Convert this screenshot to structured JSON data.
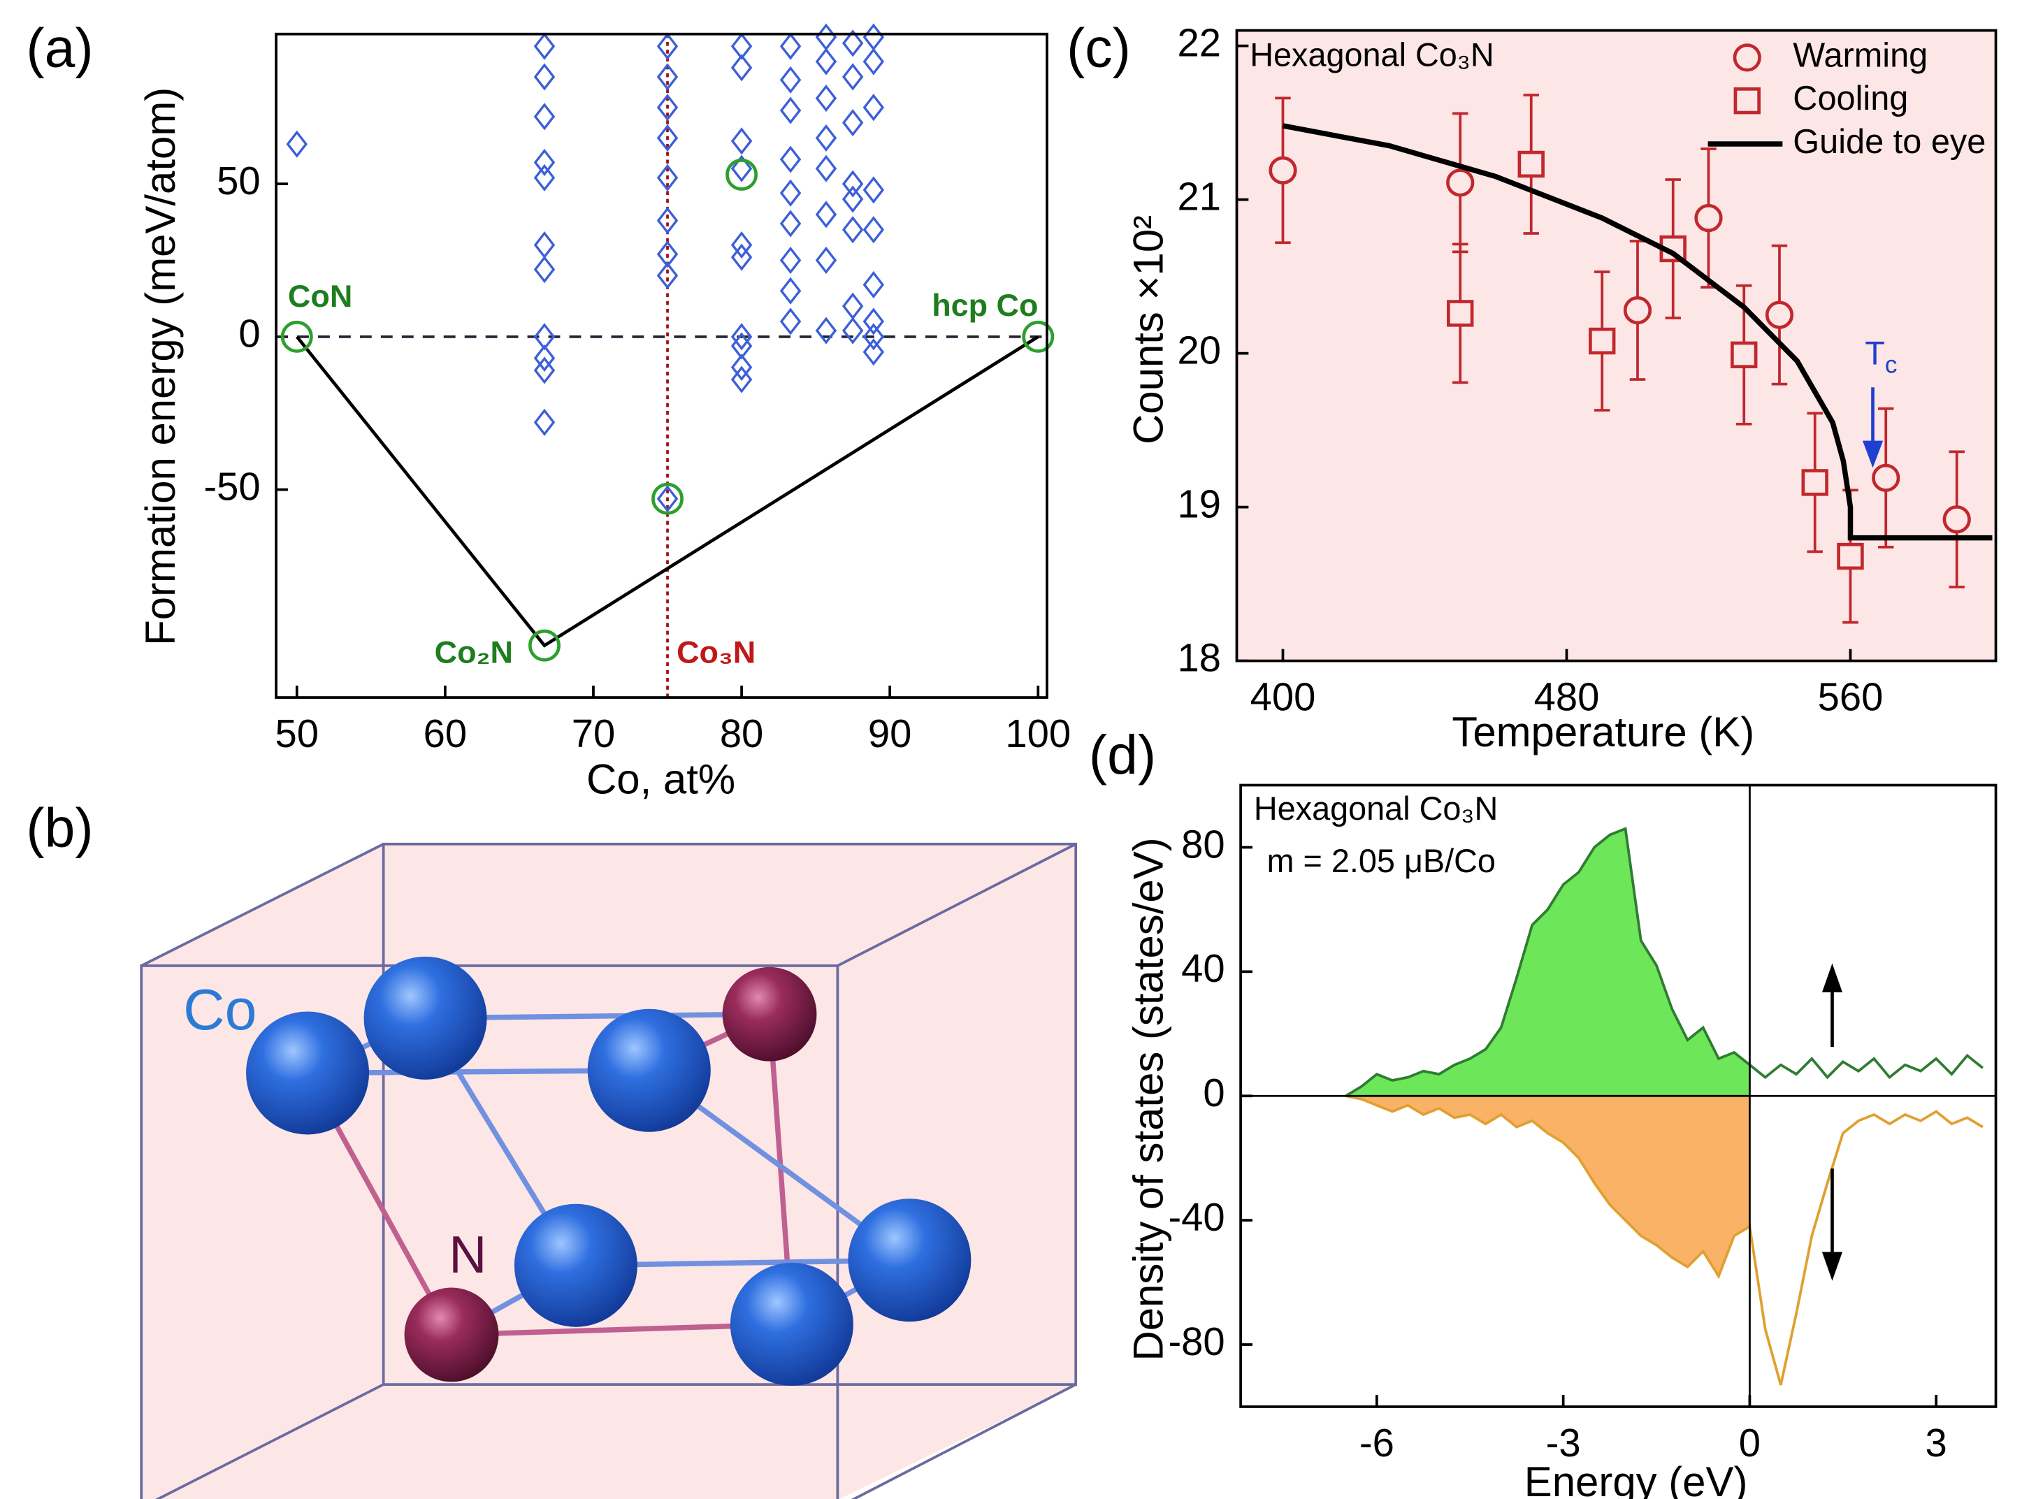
{
  "chart_data": [
    {
      "type": "scatter",
      "label": "(a)",
      "xlabel": "Co, at%",
      "ylabel": "Formation energy (meV/atom)",
      "background": "#ffffff",
      "xlim": [
        48.6,
        100.6
      ],
      "ylim": [
        -118,
        99
      ],
      "xticks": [
        50,
        60,
        70,
        80,
        90,
        100
      ],
      "yticks": [
        -50,
        0,
        50
      ],
      "hlines": [
        0
      ],
      "vlines": [
        75
      ],
      "hull": {
        "color": "#000000",
        "x": [
          50,
          66.7,
          100
        ],
        "y": [
          0,
          -101,
          0
        ]
      },
      "series": [
        {
          "marker": "diamond",
          "color": "#3c5fd8",
          "x": [
            50,
            66.7,
            66.7,
            66.7,
            66.7,
            66.7,
            66.7,
            66.7,
            66.7,
            66.7,
            66.7,
            66.7,
            75,
            75,
            75,
            75,
            75,
            75,
            75,
            75,
            75,
            80,
            80,
            80,
            80,
            80,
            80,
            80,
            80,
            80,
            80,
            83.3,
            83.3,
            83.3,
            83.3,
            83.3,
            83.3,
            83.3,
            83.3,
            83.3,
            85.7,
            85.7,
            85.7,
            85.7,
            85.7,
            85.7,
            85.7,
            85.7,
            87.5,
            87.5,
            87.5,
            87.5,
            87.5,
            87.5,
            87.5,
            87.5,
            88.9,
            88.9,
            88.9,
            88.9,
            88.9,
            88.9,
            88.9,
            88.9,
            88.9
          ],
          "y": [
            63,
            95,
            85,
            72,
            57,
            52,
            30,
            22,
            0,
            -7,
            -11,
            -28,
            95,
            85,
            75,
            65,
            52,
            38,
            27,
            20,
            -53,
            95,
            88,
            64,
            55,
            30,
            26,
            0,
            -3,
            -10,
            -14,
            95,
            84,
            74,
            58,
            47,
            37,
            25,
            15,
            5,
            98,
            90,
            78,
            65,
            55,
            40,
            25,
            2,
            96,
            85,
            70,
            50,
            45,
            35,
            10,
            2,
            98,
            90,
            75,
            48,
            35,
            17,
            5,
            0,
            -5
          ]
        },
        {
          "marker": "circle",
          "color": "#2ca02c",
          "x": [
            50,
            66.7,
            75,
            80,
            100
          ],
          "y": [
            0,
            -101,
            -53,
            53,
            0
          ]
        }
      ],
      "annotations": [
        {
          "text": "CoN",
          "color": "#1e7d1e"
        },
        {
          "text": "Co₂N",
          "color": "#1e7d1e"
        },
        {
          "text": "Co₃N",
          "color": "#c01818"
        },
        {
          "text": "hcp Co",
          "color": "#1e7d1e"
        }
      ]
    },
    {
      "type": "errorbar",
      "label": "(c)",
      "xlabel": "Temperature (K)",
      "ylabel": "Counts ×10²",
      "background": "#fde6e6",
      "xlim": [
        387,
        601
      ],
      "ylim": [
        18,
        22.1
      ],
      "xticks": [
        400,
        480,
        560
      ],
      "yticks": [
        18,
        19,
        20,
        21,
        22
      ],
      "series": [
        {
          "name": "Warming",
          "marker": "circle",
          "color": "#c0282d",
          "x": [
            400,
            450,
            500,
            520,
            540,
            570,
            590
          ],
          "y": [
            21.19,
            21.11,
            20.28,
            20.88,
            20.25,
            19.19,
            18.92
          ],
          "errors": [
            0.47,
            0.45,
            0.45,
            0.45,
            0.45,
            0.45,
            0.44
          ]
        },
        {
          "name": "Cooling",
          "marker": "square",
          "color": "#c0282d",
          "x": [
            450,
            470,
            490,
            510,
            530,
            550,
            560
          ],
          "y": [
            20.26,
            21.23,
            20.08,
            20.68,
            19.99,
            19.16,
            18.68
          ],
          "errors": [
            0.45,
            0.45,
            0.45,
            0.45,
            0.45,
            0.45,
            0.43
          ]
        },
        {
          "name": "Guide to eye",
          "marker": "line",
          "color": "#000000",
          "x": [
            400,
            430,
            460,
            490,
            510,
            530,
            545,
            555,
            558,
            560,
            560,
            600
          ],
          "y": [
            21.48,
            21.35,
            21.15,
            20.88,
            20.65,
            20.3,
            19.95,
            19.55,
            19.3,
            19.0,
            18.8,
            18.8
          ]
        }
      ],
      "annotations": [
        {
          "text": "Hexagonal Co₃N",
          "color": "#000000"
        },
        {
          "text": "T",
          "sub": "c",
          "color": "#1f3fd1"
        }
      ]
    },
    {
      "type": "area",
      "label": "(d)",
      "xlabel": "Energy (eV)",
      "ylabel": "Density of states (states/eV)",
      "background": "#ffffff",
      "xlim": [
        -8.19,
        3.96
      ],
      "ylim": [
        -100,
        100
      ],
      "xticks": [
        -6,
        -3,
        0,
        3
      ],
      "yticks": [
        -80,
        -40,
        0,
        40,
        80
      ],
      "hlines": [
        0
      ],
      "vlines": [
        0
      ],
      "fill_until": 0,
      "x": [
        -6.5,
        -6.25,
        -6,
        -5.75,
        -5.5,
        -5.25,
        -5,
        -4.75,
        -4.5,
        -4.25,
        -4,
        -3.75,
        -3.5,
        -3.25,
        -3,
        -2.75,
        -2.5,
        -2.25,
        -2,
        -1.75,
        -1.5,
        -1.25,
        -1,
        -0.75,
        -0.5,
        -0.25,
        0,
        0.25,
        0.5,
        0.75,
        1,
        1.25,
        1.5,
        1.75,
        2,
        2.25,
        2.5,
        2.75,
        3,
        3.25,
        3.5,
        3.75
      ],
      "series": [
        {
          "color": "#6ee65a",
          "line_color": "#2e7d32",
          "values": [
            0,
            3,
            7,
            5,
            6,
            8,
            7,
            10,
            12,
            15,
            22,
            38,
            55,
            60,
            68,
            72,
            80,
            84,
            86,
            50,
            42,
            28,
            18,
            22,
            12,
            14,
            10,
            6,
            10,
            7,
            12,
            6,
            11,
            8,
            12,
            6,
            10,
            8,
            12,
            7,
            13,
            9
          ]
        },
        {
          "color": "#f9b266",
          "line_color": "#e0a030",
          "values": [
            0,
            -1,
            -3,
            -5,
            -3,
            -6,
            -4,
            -7,
            -6,
            -9,
            -6,
            -10,
            -8,
            -12,
            -15,
            -20,
            -28,
            -35,
            -40,
            -45,
            -48,
            -52,
            -55,
            -50,
            -58,
            -45,
            -42,
            -75,
            -93,
            -70,
            -45,
            -28,
            -12,
            -8,
            -6,
            -9,
            -6,
            -8,
            -5,
            -9,
            -7,
            -10
          ]
        }
      ],
      "annotations": [
        {
          "text": "Hexagonal Co₃N",
          "color": "#000000"
        },
        {
          "text": "m = 2.05 μB/Co",
          "color": "#000000"
        }
      ]
    }
  ],
  "structure": {
    "label": "(b)",
    "atoms": [
      "Co",
      "N"
    ]
  }
}
